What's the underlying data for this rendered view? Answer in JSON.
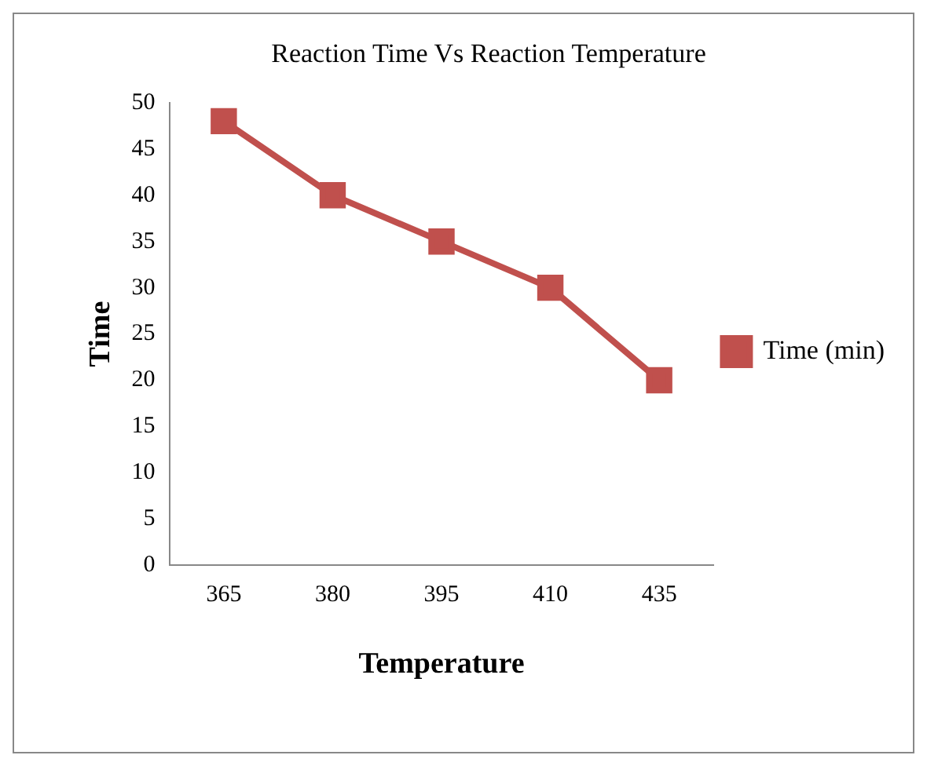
{
  "chart_data": {
    "type": "line",
    "title": "Reaction Time Vs Reaction Temperature",
    "xlabel": "Temperature",
    "ylabel": "Time",
    "categories": [
      "365",
      "380",
      "395",
      "410",
      "435"
    ],
    "series": [
      {
        "name": "Time (min)",
        "color": "#c0504d",
        "values": [
          48,
          40,
          35,
          30,
          20
        ]
      }
    ],
    "ylim": [
      0,
      50
    ],
    "yticks": [
      0,
      5,
      10,
      15,
      20,
      25,
      30,
      35,
      40,
      45,
      50
    ],
    "grid": false,
    "legend": "right",
    "marker": "square",
    "line_style": "solid"
  }
}
